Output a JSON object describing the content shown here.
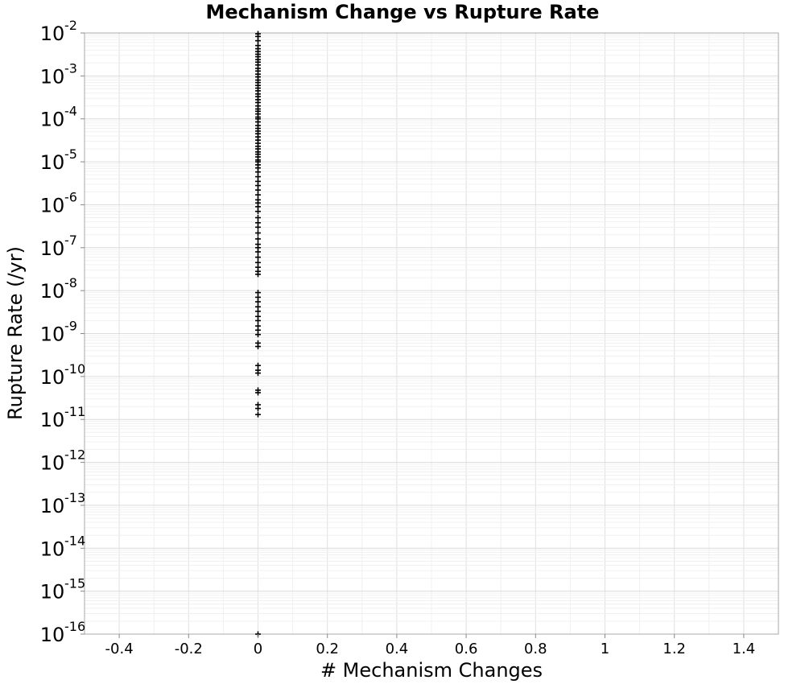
{
  "chart_data": {
    "type": "scatter",
    "title": "Mechanism Change vs Rupture Rate",
    "xlabel": "# Mechanism Changes",
    "ylabel": "Rupture Rate (/yr)",
    "xlim": [
      -0.5,
      1.5
    ],
    "ylim": [
      1e-16,
      0.01
    ],
    "y_scale": "log",
    "grid": true,
    "marker": "plus",
    "marker_color": "#000000",
    "x_ticks": [
      -0.4,
      -0.2,
      0,
      0.2,
      0.4,
      0.6,
      0.8,
      1,
      1.2,
      1.4
    ],
    "x_tick_labels": [
      "-0.4",
      "-0.2",
      "0",
      "0.2",
      "0.4",
      "0.6",
      "0.8",
      "1",
      "1.2",
      "1.4"
    ],
    "y_ticks": [
      {
        "value": 0.01,
        "base": "10",
        "exp": "-2"
      },
      {
        "value": 0.001,
        "base": "10",
        "exp": "-3"
      },
      {
        "value": 0.0001,
        "base": "10",
        "exp": "-4"
      },
      {
        "value": 1e-05,
        "base": "10",
        "exp": "-5"
      },
      {
        "value": 1e-06,
        "base": "10",
        "exp": "-6"
      },
      {
        "value": 1e-07,
        "base": "10",
        "exp": "-7"
      },
      {
        "value": 1e-08,
        "base": "10",
        "exp": "-8"
      },
      {
        "value": 1e-09,
        "base": "10",
        "exp": "-9"
      },
      {
        "value": 1e-10,
        "base": "10",
        "exp": "-10"
      },
      {
        "value": 1e-11,
        "base": "10",
        "exp": "-11"
      },
      {
        "value": 1e-12,
        "base": "10",
        "exp": "-12"
      },
      {
        "value": 1e-13,
        "base": "10",
        "exp": "-13"
      },
      {
        "value": 1e-14,
        "base": "10",
        "exp": "-14"
      },
      {
        "value": 1e-15,
        "base": "10",
        "exp": "-15"
      },
      {
        "value": 1e-16,
        "base": "10",
        "exp": "-16"
      }
    ],
    "series": [
      {
        "x": 0,
        "y": [
          0.01,
          0.0083,
          0.0066,
          0.0051,
          0.0043,
          0.0037,
          0.0032,
          0.0028,
          0.0024,
          0.0021,
          0.0018,
          0.0015,
          0.0013,
          0.0011,
          0.00095,
          0.0008,
          0.0007,
          0.0006,
          0.00052,
          0.00045,
          0.00038,
          0.00033,
          0.00028,
          0.00024,
          0.0002,
          0.00017,
          0.00015,
          0.00013,
          0.00011,
          0.0001,
          8.5e-05,
          7e-05,
          6e-05,
          5.2e-05,
          4.5e-05,
          3.8e-05,
          3.2e-05,
          2.7e-05,
          2.3e-05,
          2e-05,
          1.7e-05,
          1.5e-05,
          1.3e-05,
          1.1e-05,
          1e-05,
          8.5e-06,
          7.2e-06,
          5.8e-06,
          4.5e-06,
          3.5e-06,
          2.8e-06,
          2.2e-06,
          1.7e-06,
          1.3e-06,
          1.1e-06,
          9e-07,
          7e-07,
          5e-07,
          3.8e-07,
          3e-07,
          2.2e-07,
          1.6e-07,
          1.2e-07,
          1e-07,
          8e-08,
          6e-08,
          4.5e-08,
          3.5e-08,
          2.8e-08,
          2.4e-08,
          9e-09,
          7e-09,
          5.5e-09,
          4.2e-09,
          3.3e-09,
          2.5e-09,
          2e-09,
          1.5e-09,
          1.2e-09,
          9.5e-10,
          6e-10,
          5e-10,
          1.8e-10,
          1.4e-10,
          1.2e-10,
          4.8e-11,
          4.2e-11,
          2.2e-11,
          1.8e-11,
          1.3e-11,
          1e-16
        ]
      }
    ]
  }
}
